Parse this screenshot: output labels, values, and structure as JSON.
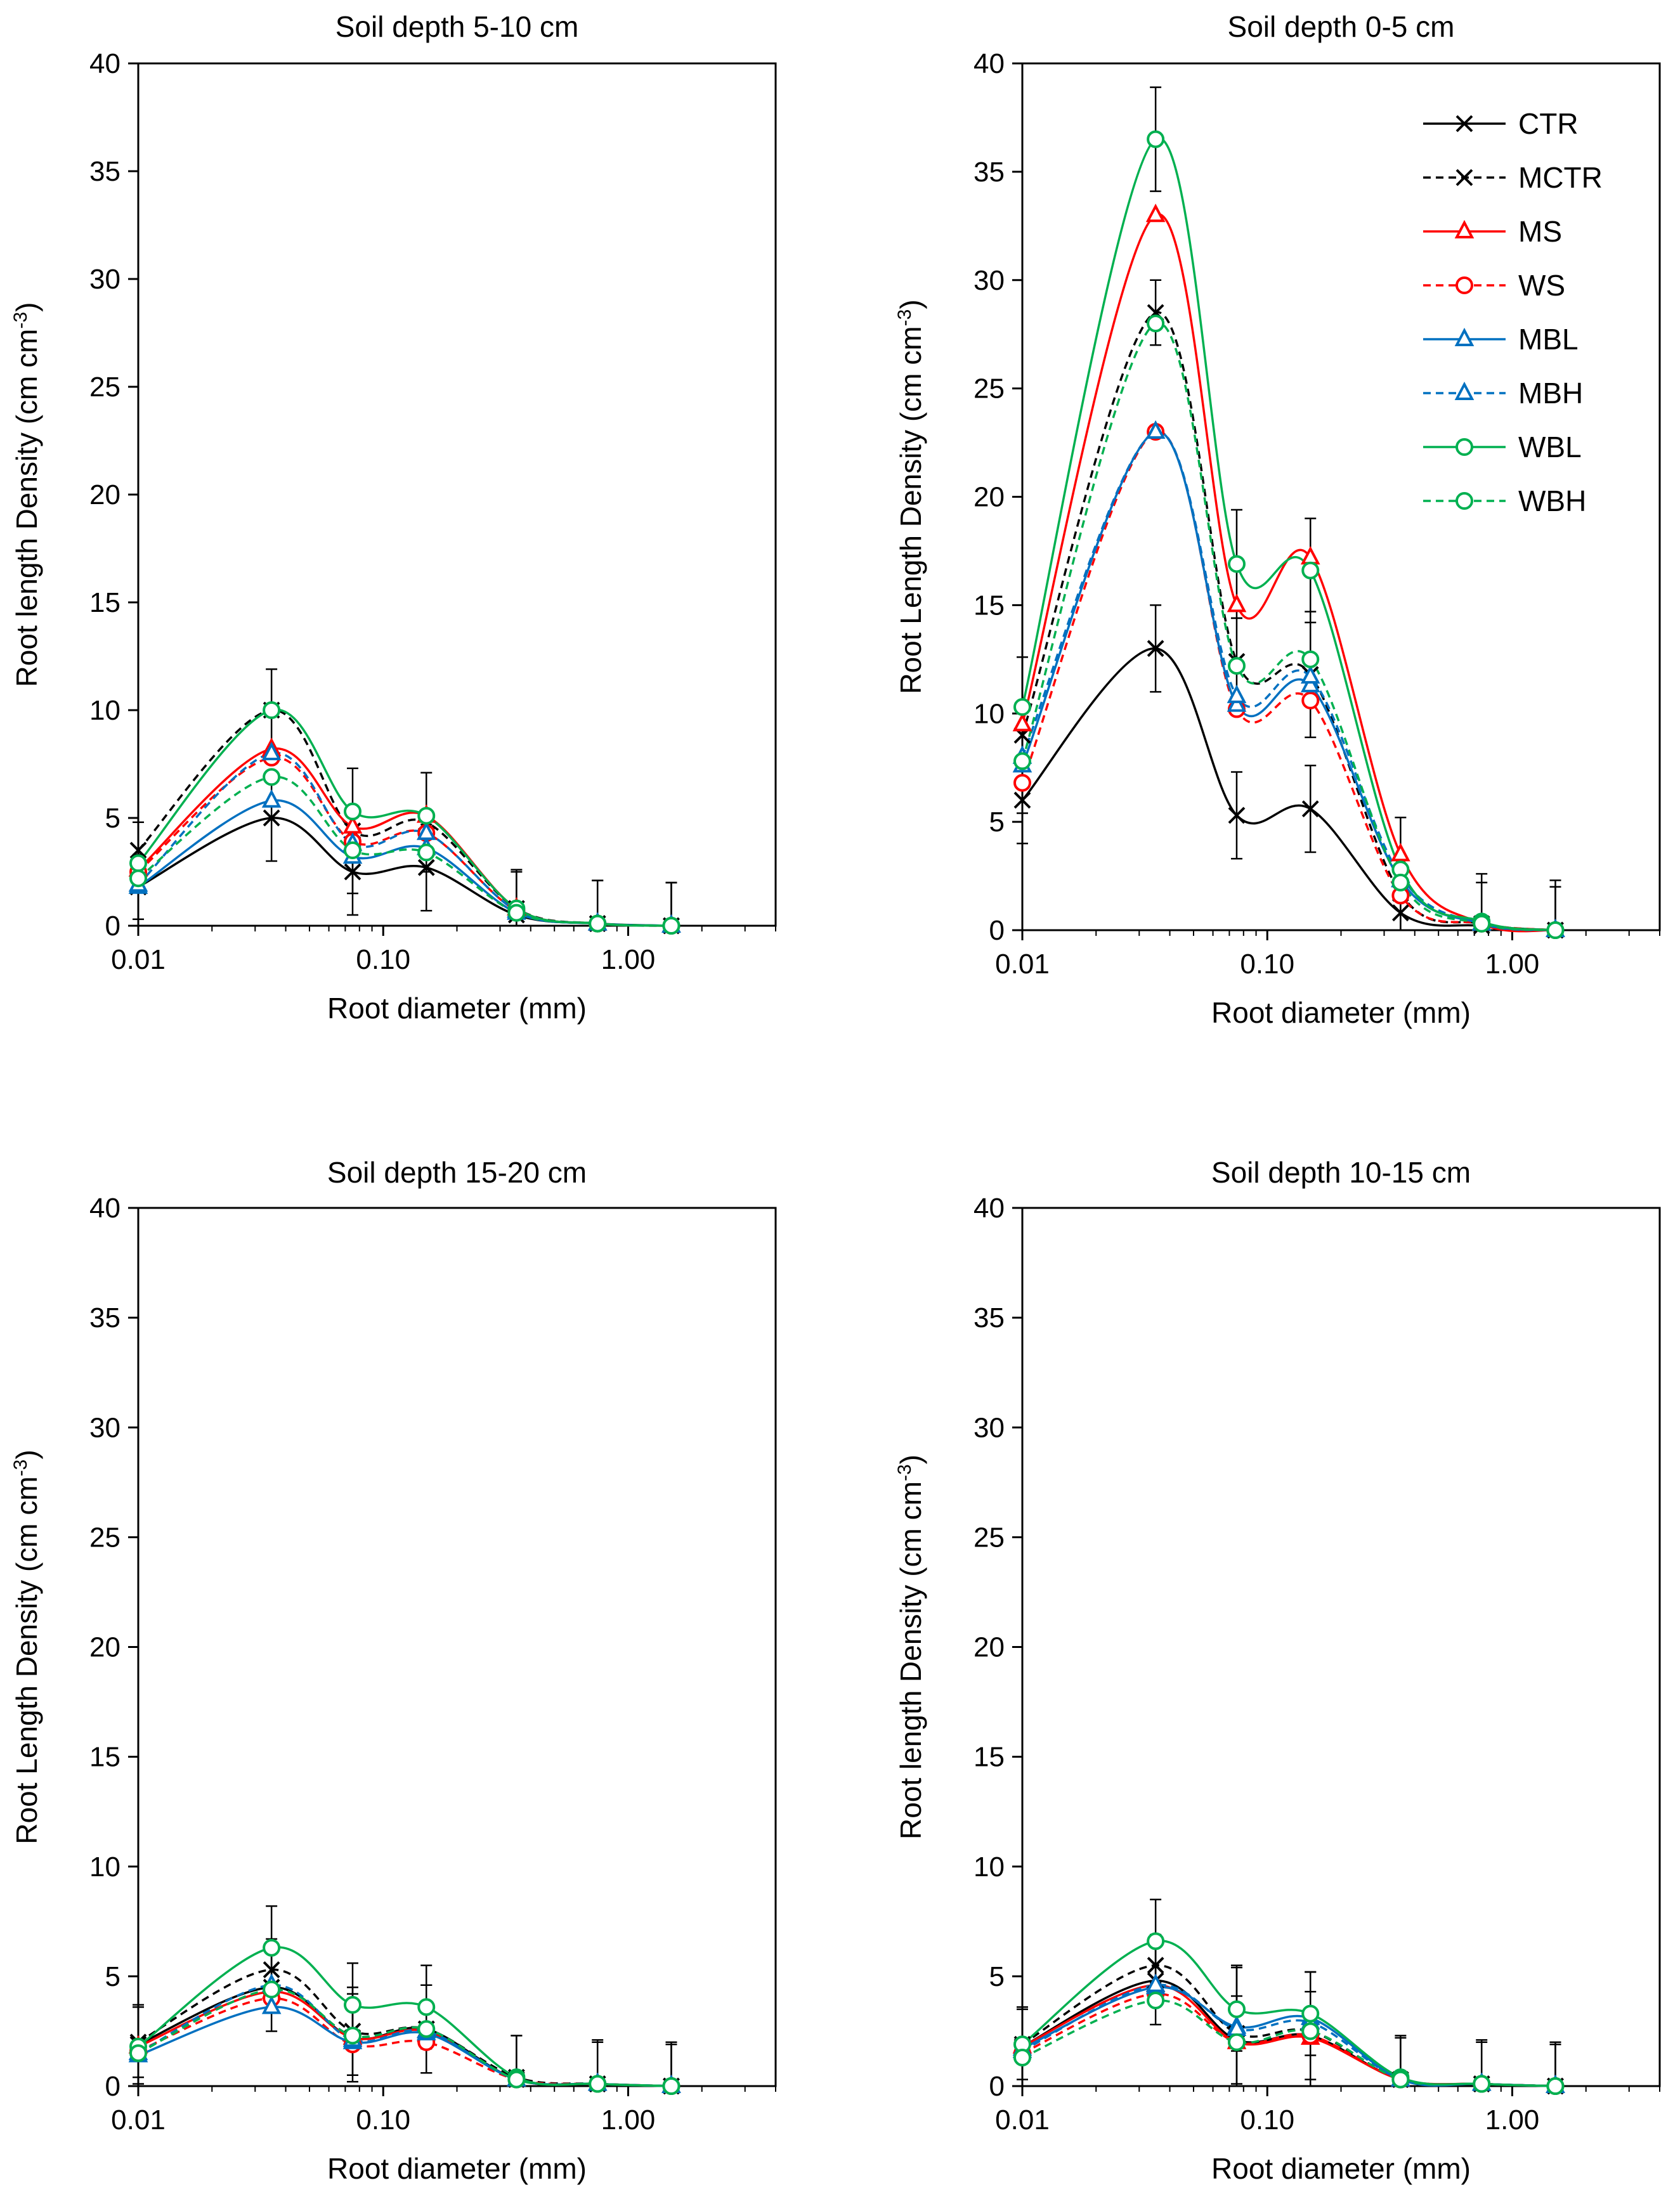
{
  "figure": {
    "name": "root-length-density-figure"
  },
  "series_styles": [
    {
      "name": "CTR",
      "color": "#000000",
      "dash": "solid",
      "marker": "x"
    },
    {
      "name": "MCTR",
      "color": "#000000",
      "dash": "dashed",
      "marker": "x"
    },
    {
      "name": "MS",
      "color": "#ff0000",
      "dash": "solid",
      "marker": "triangle"
    },
    {
      "name": "WS",
      "color": "#ff0000",
      "dash": "dashed",
      "marker": "circle"
    },
    {
      "name": "MBL",
      "color": "#0070c0",
      "dash": "solid",
      "marker": "triangle"
    },
    {
      "name": "MBH",
      "color": "#0070c0",
      "dash": "dashed",
      "marker": "triangle"
    },
    {
      "name": "WBL",
      "color": "#00b050",
      "dash": "solid",
      "marker": "circle"
    },
    {
      "name": "WBH",
      "color": "#00b050",
      "dash": "dashed",
      "marker": "circle"
    }
  ],
  "chart_data": [
    {
      "id": "p510",
      "type": "line",
      "title": "Soil depth  5-10 cm",
      "xlabel": "Root diameter (mm)",
      "ylabel_main": "Root length Density  (cm cm",
      "ylabel_sup": "-3",
      "ylabel_end": ")",
      "xscale": "log",
      "xlim": [
        0.01,
        4.0
      ],
      "ylim": [
        0,
        40
      ],
      "yticks": [
        0,
        5,
        10,
        15,
        20,
        25,
        30,
        35,
        40
      ],
      "ytick_labels": [
        "0",
        "5",
        "10",
        "15",
        "20",
        "25",
        "30",
        "35",
        "40"
      ],
      "xticks": [
        0.01,
        0.1,
        1.0
      ],
      "xtick_labels": [
        "0.01",
        "0.10",
        "1.00"
      ],
      "legend": "none",
      "x": [
        0.01,
        0.035,
        0.075,
        0.15,
        0.35,
        0.75,
        1.5
      ],
      "series": [
        {
          "name": "CTR",
          "values": [
            1.8,
            5.0,
            2.5,
            2.7,
            0.5,
            0.1,
            0.0
          ],
          "errors": [
            1.5,
            2.0,
            2.0,
            2.0,
            2.0,
            2.0,
            2.0
          ]
        },
        {
          "name": "MCTR",
          "values": [
            3.5,
            10.0,
            4.4,
            4.8,
            0.8,
            0.1,
            0.0
          ],
          "errors": [
            1.3,
            1.9,
            2.9,
            2.3,
            1.8,
            2.0,
            2.0
          ]
        },
        {
          "name": "MS",
          "values": [
            2.6,
            8.2,
            4.6,
            5.1,
            0.8,
            0.1,
            0.0
          ],
          "errors": [
            0,
            0,
            0,
            0,
            0,
            0,
            0
          ]
        },
        {
          "name": "WS",
          "values": [
            2.5,
            7.8,
            3.9,
            4.3,
            0.7,
            0.1,
            0.0
          ],
          "errors": [
            0,
            0,
            0,
            0,
            0,
            0,
            0
          ]
        },
        {
          "name": "MBL",
          "values": [
            1.8,
            5.8,
            3.2,
            3.6,
            0.6,
            0.1,
            0.0
          ],
          "errors": [
            0,
            0,
            0,
            0,
            0,
            0,
            0
          ]
        },
        {
          "name": "MBH",
          "values": [
            1.9,
            8.0,
            3.8,
            4.3,
            0.7,
            0.1,
            0.0
          ],
          "errors": [
            0,
            0,
            0,
            0,
            0,
            0,
            0
          ]
        },
        {
          "name": "WBL",
          "values": [
            2.9,
            10.0,
            5.3,
            5.1,
            0.8,
            0.1,
            0.0
          ],
          "errors": [
            0,
            0,
            0,
            0,
            0,
            0,
            0
          ]
        },
        {
          "name": "WBH",
          "values": [
            2.2,
            6.9,
            3.5,
            3.4,
            0.6,
            0.1,
            0.0
          ],
          "errors": [
            0,
            0,
            0,
            0,
            0,
            0,
            0
          ]
        }
      ]
    },
    {
      "id": "p05",
      "type": "line",
      "title": "Soil depth  0-5 cm",
      "xlabel": "Root diameter (mm)",
      "ylabel_main": "Root Length Density  (cm cm",
      "ylabel_sup": "-3",
      "ylabel_end": ")",
      "xscale": "log",
      "xlim": [
        0.01,
        4.0
      ],
      "ylim": [
        0,
        40
      ],
      "yticks": [
        0,
        5,
        10,
        15,
        20,
        25,
        30,
        35,
        40
      ],
      "ytick_labels": [
        "0",
        "5",
        "10",
        "15",
        "20",
        "25",
        "30",
        "35",
        "40"
      ],
      "xticks": [
        0.01,
        0.1,
        1.0
      ],
      "xtick_labels": [
        "0.01",
        "0.10",
        "1.00"
      ],
      "legend": "top-right",
      "x": [
        0.01,
        0.035,
        0.075,
        0.15,
        0.35,
        0.75,
        1.5
      ],
      "series": [
        {
          "name": "CTR",
          "values": [
            6.0,
            13.0,
            5.3,
            5.6,
            0.8,
            0.2,
            0.0
          ],
          "errors": [
            2.0,
            2.0,
            2.0,
            2.0,
            2.0,
            2.0,
            2.0
          ]
        },
        {
          "name": "MCTR",
          "values": [
            9.0,
            28.5,
            12.4,
            11.8,
            1.7,
            0.3,
            0.0
          ],
          "errors": [
            3.6,
            1.5,
            2.0,
            2.9,
            3.5,
            2.3,
            2.3
          ]
        },
        {
          "name": "MS",
          "values": [
            9.5,
            33.0,
            15.0,
            17.2,
            3.5,
            0.3,
            0.0
          ],
          "errors": [
            0,
            0,
            0,
            0,
            0,
            0,
            0
          ]
        },
        {
          "name": "WS",
          "values": [
            6.8,
            23.0,
            10.2,
            10.6,
            1.6,
            0.3,
            0.0
          ],
          "errors": [
            0,
            0,
            0,
            0,
            0,
            0,
            0
          ]
        },
        {
          "name": "MBL",
          "values": [
            7.6,
            23.0,
            10.4,
            11.3,
            2.3,
            0.3,
            0.0
          ],
          "errors": [
            0,
            0,
            0,
            0,
            0,
            0,
            0
          ]
        },
        {
          "name": "MBH",
          "values": [
            8.0,
            23.0,
            10.8,
            11.7,
            2.5,
            0.3,
            0.0
          ],
          "errors": [
            0,
            0,
            0,
            0,
            0,
            0,
            0
          ]
        },
        {
          "name": "WBL",
          "values": [
            10.3,
            36.5,
            16.9,
            16.6,
            2.8,
            0.4,
            0.0
          ],
          "errors": [
            0,
            2.4,
            2.5,
            2.4,
            0,
            0,
            0
          ]
        },
        {
          "name": "WBH",
          "values": [
            7.8,
            28.0,
            12.2,
            12.5,
            2.2,
            0.3,
            0.0
          ],
          "errors": [
            0,
            0,
            0,
            0,
            0,
            0,
            0
          ]
        }
      ]
    },
    {
      "id": "p1520",
      "type": "line",
      "title": "Soil depth  15-20 cm",
      "xlabel": "Root diameter (mm)",
      "ylabel_main": "Root Length Density   (cm cm",
      "ylabel_sup": "-3",
      "ylabel_end": ")",
      "xscale": "log",
      "xlim": [
        0.01,
        4.0
      ],
      "ylim": [
        0,
        40
      ],
      "yticks": [
        0,
        5,
        10,
        15,
        20,
        25,
        30,
        35,
        40
      ],
      "ytick_labels": [
        "0",
        "5",
        "10",
        "15",
        "20",
        "25",
        "30",
        "35",
        "40"
      ],
      "xticks": [
        0.01,
        0.1,
        1.0
      ],
      "xtick_labels": [
        "0.01",
        "0.10",
        "1.00"
      ],
      "legend": "none",
      "x": [
        0.01,
        0.035,
        0.075,
        0.15,
        0.35,
        0.75,
        1.5
      ],
      "series": [
        {
          "name": "CTR",
          "values": [
            1.9,
            4.5,
            2.2,
            2.6,
            0.3,
            0.1,
            0.0
          ],
          "errors": [
            1.8,
            2.0,
            2.0,
            2.0,
            2.0,
            2.0,
            2.0
          ]
        },
        {
          "name": "MCTR",
          "values": [
            2.0,
            5.3,
            2.5,
            2.6,
            0.4,
            0.1,
            0.0
          ],
          "errors": [
            1.6,
            1.4,
            2.0,
            2.0,
            1.9,
            1.9,
            1.9
          ]
        },
        {
          "name": "MS",
          "values": [
            1.8,
            4.3,
            2.2,
            2.5,
            0.3,
            0.1,
            0.0
          ],
          "errors": [
            0,
            0,
            0,
            0,
            0,
            0,
            0
          ]
        },
        {
          "name": "WS",
          "values": [
            1.6,
            4.0,
            1.9,
            2.0,
            0.3,
            0.1,
            0.0
          ],
          "errors": [
            0,
            0,
            0,
            0,
            0,
            0,
            0
          ]
        },
        {
          "name": "MBL",
          "values": [
            1.4,
            3.6,
            2.0,
            2.4,
            0.3,
            0.1,
            0.0
          ],
          "errors": [
            0,
            0,
            0,
            0,
            0,
            0,
            0
          ]
        },
        {
          "name": "MBH",
          "values": [
            1.5,
            4.6,
            2.1,
            2.5,
            0.3,
            0.1,
            0.0
          ],
          "errors": [
            0,
            0,
            0,
            0,
            0,
            0,
            0
          ]
        },
        {
          "name": "WBL",
          "values": [
            1.8,
            6.3,
            3.7,
            3.6,
            0.4,
            0.1,
            0.0
          ],
          "errors": [
            0,
            1.9,
            1.9,
            1.9,
            0,
            0,
            0
          ]
        },
        {
          "name": "WBH",
          "values": [
            1.5,
            4.4,
            2.3,
            2.6,
            0.3,
            0.1,
            0.0
          ],
          "errors": [
            0,
            0,
            0,
            0,
            0,
            0,
            0
          ]
        }
      ]
    },
    {
      "id": "p1015",
      "type": "line",
      "title": "Soil depth  10-15 cm",
      "xlabel": "Root diameter (mm)",
      "ylabel_main": "Root length Density  (cm cm",
      "ylabel_sup": "-3",
      "ylabel_end": ")",
      "xscale": "log",
      "xlim": [
        0.01,
        4.0
      ],
      "ylim": [
        0,
        40
      ],
      "yticks": [
        0,
        5,
        10,
        15,
        20,
        25,
        30,
        35,
        40
      ],
      "ytick_labels": [
        "0",
        "5",
        "10",
        "15",
        "20",
        "25",
        "30",
        "35",
        "40"
      ],
      "xticks": [
        0.01,
        0.1,
        1.0
      ],
      "xtick_labels": [
        "0.01",
        "0.10",
        "1.00"
      ],
      "legend": "none",
      "x": [
        0.01,
        0.035,
        0.075,
        0.15,
        0.35,
        0.75,
        1.5
      ],
      "series": [
        {
          "name": "CTR",
          "values": [
            1.8,
            4.8,
            2.1,
            2.3,
            0.3,
            0.1,
            0.0
          ],
          "errors": [
            1.8,
            2.0,
            2.0,
            2.0,
            2.0,
            2.0,
            2.0
          ]
        },
        {
          "name": "MCTR",
          "values": [
            1.9,
            5.5,
            2.4,
            2.5,
            0.3,
            0.1,
            0.0
          ],
          "errors": [
            1.6,
            1.4,
            3.1,
            2.7,
            1.9,
            1.9,
            1.9
          ]
        },
        {
          "name": "MS",
          "values": [
            1.8,
            4.6,
            2.0,
            2.2,
            0.3,
            0.1,
            0.0
          ],
          "errors": [
            0,
            0,
            0,
            0,
            0,
            0,
            0
          ]
        },
        {
          "name": "WS",
          "values": [
            1.5,
            4.2,
            2.0,
            2.3,
            0.3,
            0.1,
            0.0
          ],
          "errors": [
            0,
            0,
            0,
            0,
            0,
            0,
            0
          ]
        },
        {
          "name": "MBL",
          "values": [
            1.7,
            4.5,
            2.7,
            3.1,
            0.3,
            0.1,
            0.0
          ],
          "errors": [
            0,
            0,
            0,
            0,
            0,
            0,
            0
          ]
        },
        {
          "name": "MBH",
          "values": [
            1.6,
            4.6,
            2.6,
            2.9,
            0.3,
            0.1,
            0.0
          ],
          "errors": [
            0,
            0,
            0,
            0,
            0,
            0,
            0
          ]
        },
        {
          "name": "WBL",
          "values": [
            1.9,
            6.6,
            3.5,
            3.3,
            0.4,
            0.1,
            0.0
          ],
          "errors": [
            0,
            1.9,
            1.9,
            1.9,
            0,
            0,
            0
          ]
        },
        {
          "name": "WBH",
          "values": [
            1.3,
            3.9,
            2.0,
            2.5,
            0.3,
            0.1,
            0.0
          ],
          "errors": [
            0,
            0,
            0,
            0,
            0,
            0,
            0
          ]
        }
      ]
    }
  ]
}
